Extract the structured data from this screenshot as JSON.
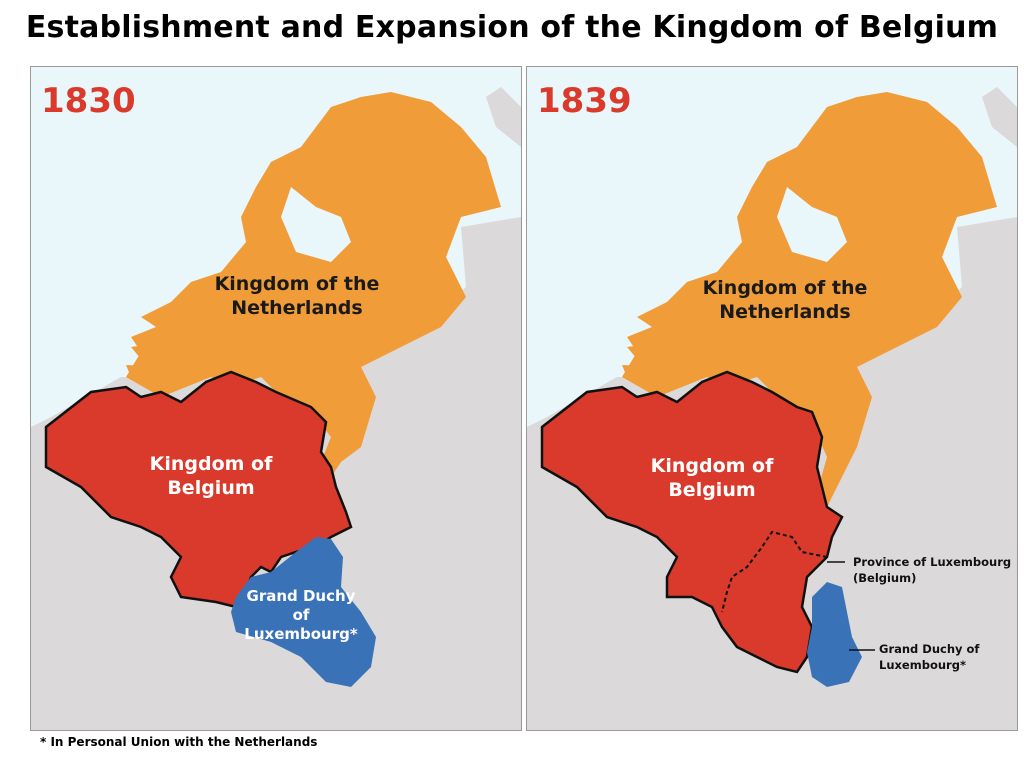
{
  "title": "Establishment and Expansion of the Kingdom of Belgium",
  "colors": {
    "sea": "#e9f6fa",
    "land": "#dcd9da",
    "netherlands": "#f09c38",
    "belgium": "#d93a2b",
    "luxembourg": "#3a72b8",
    "year_text": "#d93a2b"
  },
  "maps": [
    {
      "year": "1830",
      "labels": {
        "netherlands": "Kingdom of the Netherlands",
        "belgium": "Kingdom of Belgium",
        "luxembourg": "Grand Duchy of Luxembourg*"
      }
    },
    {
      "year": "1839",
      "labels": {
        "netherlands": "Kingdom of the Netherlands",
        "belgium": "Kingdom of Belgium",
        "province_luxembourg": "Province of Luxembourg (Belgium)",
        "luxembourg": "Grand Duchy of Luxembourg*"
      }
    }
  ],
  "footnote": "* In Personal Union with the Netherlands"
}
